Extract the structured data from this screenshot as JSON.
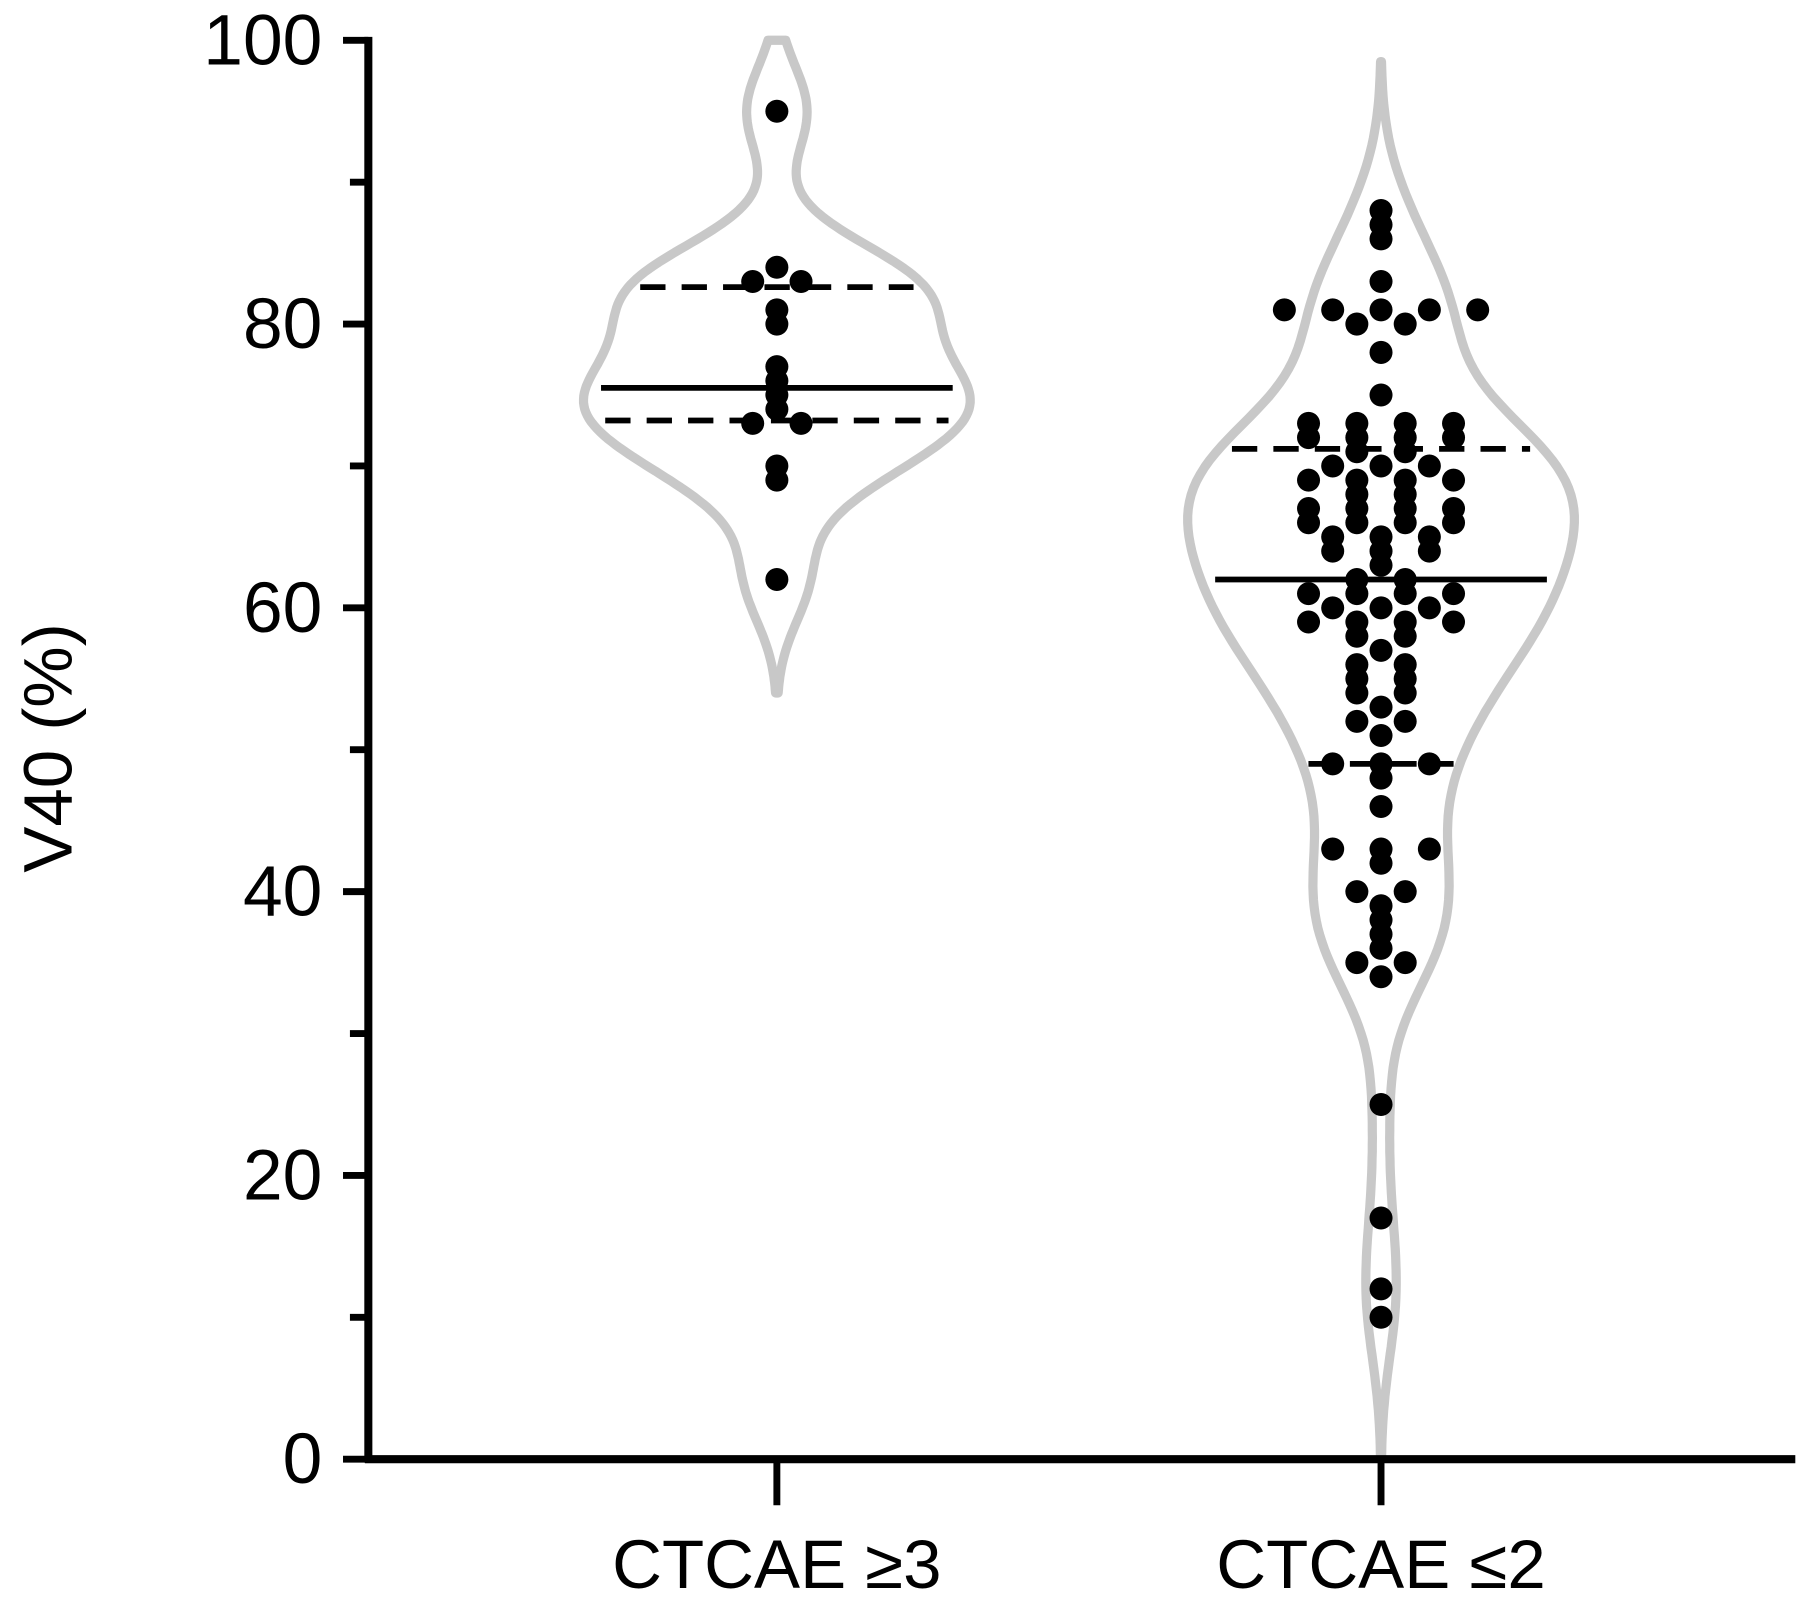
{
  "chart_data": {
    "type": "violin",
    "y_label": "V40 (%)",
    "ylim": [
      0,
      100
    ],
    "yticks": [
      0,
      20,
      40,
      60,
      80,
      100
    ],
    "yminorticks": [
      10,
      30,
      50,
      70,
      90
    ],
    "violin_color": "#c8c8c8",
    "point_color": "#000000",
    "groups": [
      {
        "name": "CTCAE ≥3",
        "values": [
          95,
          84,
          83,
          83,
          81,
          80,
          77,
          76,
          75,
          74,
          73,
          73,
          70,
          69,
          62
        ],
        "median": 75.5,
        "q1": 73.2,
        "q3": 82.6
      },
      {
        "name": "CTCAE ≤2",
        "values": [
          88,
          87,
          86,
          83,
          81,
          81,
          81,
          81,
          81,
          80,
          80,
          78,
          75,
          73,
          73,
          73,
          73,
          72,
          72,
          72,
          72,
          71,
          71,
          70,
          70,
          70,
          69,
          69,
          69,
          69,
          68,
          68,
          67,
          67,
          67,
          67,
          66,
          66,
          66,
          66,
          65,
          65,
          65,
          64,
          64,
          64,
          63,
          62,
          62,
          61,
          61,
          61,
          61,
          60,
          60,
          60,
          59,
          59,
          59,
          59,
          58,
          58,
          57,
          56,
          56,
          55,
          55,
          54,
          54,
          53,
          52,
          52,
          51,
          49,
          49,
          49,
          48,
          46,
          43,
          43,
          43,
          42,
          40,
          40,
          39,
          38,
          37,
          36,
          35,
          35,
          34,
          25,
          17,
          12,
          10
        ],
        "median": 62,
        "q1": 49,
        "q3": 71.2
      }
    ]
  }
}
